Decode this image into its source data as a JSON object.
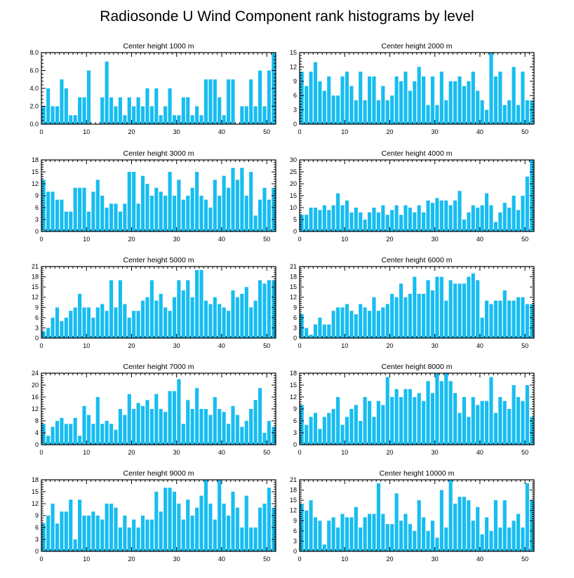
{
  "chart_data": {
    "title": "Radiosonde U Wind Component rank histograms by level",
    "type": "bar",
    "x_ticks": [
      0,
      10,
      20,
      30,
      40,
      50
    ],
    "xlim": [
      0,
      52
    ],
    "panels": [
      {
        "title": "Center height 1000 m",
        "ylim": [
          0,
          8
        ],
        "y_ticks": [
          0,
          2,
          4,
          6,
          8
        ],
        "y_tick_labels": [
          "0.0",
          "2.0",
          "4.0",
          "6.0",
          "8.0"
        ],
        "values": [
          2,
          4,
          2,
          2,
          5,
          4,
          1,
          1,
          3,
          3,
          6,
          0,
          0,
          3,
          7,
          3,
          2,
          3,
          1,
          3,
          2,
          3,
          2,
          4,
          2,
          4,
          1,
          2,
          4,
          1,
          1,
          3,
          3,
          1,
          2,
          1,
          5,
          5,
          5,
          3,
          1,
          5,
          5,
          0,
          2,
          2,
          5,
          2,
          6,
          2,
          6,
          8
        ]
      },
      {
        "title": "Center height 2000 m",
        "ylim": [
          0,
          15
        ],
        "y_ticks": [
          0,
          3,
          6,
          9,
          12,
          15
        ],
        "y_tick_labels": [
          "0",
          "3",
          "6",
          "9",
          "12",
          "15"
        ],
        "values": [
          11,
          8,
          11,
          13,
          9,
          7,
          10,
          6,
          6,
          10,
          11,
          8,
          5,
          11,
          5,
          10,
          10,
          5,
          8,
          5,
          6,
          10,
          9,
          11,
          7,
          9,
          12,
          10,
          4,
          10,
          4,
          11,
          5,
          9,
          9,
          10,
          8,
          9,
          11,
          7,
          5,
          3,
          15,
          10,
          11,
          4,
          5,
          12,
          4,
          11,
          5,
          5
        ]
      },
      {
        "title": "Center height 3000 m",
        "ylim": [
          0,
          18
        ],
        "y_ticks": [
          0,
          3,
          6,
          9,
          12,
          15,
          18
        ],
        "y_tick_labels": [
          "0",
          "3",
          "6",
          "9",
          "12",
          "15",
          "18"
        ],
        "values": [
          13,
          10,
          10,
          8,
          8,
          5,
          5,
          11,
          11,
          11,
          5,
          10,
          13,
          9,
          6,
          7,
          7,
          5,
          7,
          15,
          15,
          7,
          14,
          12,
          9,
          11,
          10,
          9,
          15,
          9,
          13,
          8,
          9,
          11,
          15,
          9,
          8,
          6,
          13,
          9,
          14,
          11,
          16,
          13,
          16,
          9,
          15,
          4,
          8,
          11,
          8,
          11
        ]
      },
      {
        "title": "Center height 4000 m",
        "ylim": [
          0,
          30
        ],
        "y_ticks": [
          0,
          5,
          10,
          15,
          20,
          25,
          30
        ],
        "y_tick_labels": [
          "0",
          "5",
          "10",
          "15",
          "20",
          "25",
          "30"
        ],
        "values": [
          7,
          7,
          10,
          10,
          9,
          11,
          9,
          11,
          16,
          11,
          13,
          8,
          10,
          8,
          5,
          8,
          10,
          8,
          11,
          7,
          9,
          11,
          7,
          11,
          10,
          8,
          11,
          8,
          13,
          12,
          14,
          13,
          13,
          11,
          13,
          17,
          5,
          8,
          11,
          10,
          11,
          16,
          11,
          4,
          8,
          12,
          10,
          15,
          9,
          15,
          23,
          30
        ]
      },
      {
        "title": "Center height 5000 m",
        "ylim": [
          0,
          21
        ],
        "y_ticks": [
          0,
          3,
          6,
          9,
          12,
          15,
          18,
          21
        ],
        "y_tick_labels": [
          "0",
          "3",
          "6",
          "9",
          "12",
          "15",
          "18",
          "21"
        ],
        "values": [
          2,
          3,
          6,
          9,
          5,
          6,
          8,
          9,
          13,
          9,
          9,
          6,
          9,
          10,
          8,
          17,
          9,
          17,
          10,
          6,
          8,
          8,
          11,
          12,
          17,
          11,
          13,
          9,
          8,
          12,
          17,
          14,
          17,
          12,
          20,
          20,
          11,
          10,
          12,
          10,
          9,
          8,
          14,
          12,
          13,
          15,
          9,
          11,
          17,
          16,
          17,
          17
        ]
      },
      {
        "title": "Center height 6000 m",
        "ylim": [
          0,
          21
        ],
        "y_ticks": [
          0,
          3,
          6,
          9,
          12,
          15,
          18,
          21
        ],
        "y_tick_labels": [
          "0",
          "3",
          "6",
          "9",
          "12",
          "15",
          "18",
          "21"
        ],
        "values": [
          7,
          3,
          1,
          4,
          6,
          4,
          4,
          8,
          9,
          9,
          10,
          8,
          7,
          10,
          9,
          8,
          12,
          8,
          9,
          10,
          13,
          12,
          16,
          12,
          13,
          18,
          13,
          13,
          17,
          14,
          18,
          18,
          11,
          17,
          16,
          16,
          16,
          18,
          19,
          17,
          6,
          11,
          10,
          11,
          11,
          14,
          11,
          11,
          12,
          12,
          10,
          10
        ]
      },
      {
        "title": "Center height 7000 m",
        "ylim": [
          0,
          24
        ],
        "y_ticks": [
          0,
          4,
          8,
          12,
          16,
          20,
          24
        ],
        "y_tick_labels": [
          "0",
          "4",
          "8",
          "12",
          "16",
          "20",
          "24"
        ],
        "values": [
          7,
          3,
          6,
          8,
          9,
          7,
          7,
          9,
          3,
          13,
          10,
          7,
          16,
          7,
          8,
          7,
          5,
          12,
          10,
          17,
          12,
          14,
          13,
          15,
          12,
          17,
          12,
          11,
          18,
          18,
          22,
          7,
          15,
          12,
          19,
          12,
          12,
          10,
          16,
          12,
          11,
          7,
          13,
          10,
          6,
          8,
          12,
          15,
          19,
          4,
          8,
          6
        ]
      },
      {
        "title": "Center height 8000 m",
        "ylim": [
          0,
          18
        ],
        "y_ticks": [
          0,
          3,
          6,
          9,
          12,
          15,
          18
        ],
        "y_tick_labels": [
          "0",
          "3",
          "6",
          "9",
          "12",
          "15",
          "18"
        ],
        "values": [
          10,
          5,
          7,
          8,
          4,
          7,
          8,
          9,
          12,
          5,
          7,
          9,
          10,
          6,
          12,
          11,
          7,
          11,
          10,
          17,
          12,
          14,
          12,
          14,
          14,
          12,
          13,
          11,
          16,
          13,
          18,
          16,
          18,
          16,
          13,
          8,
          12,
          7,
          12,
          10,
          11,
          11,
          17,
          8,
          12,
          11,
          9,
          15,
          12,
          11,
          15,
          7
        ]
      },
      {
        "title": "Center height 9000 m",
        "ylim": [
          0,
          18
        ],
        "y_ticks": [
          0,
          3,
          6,
          9,
          12,
          15,
          18
        ],
        "y_tick_labels": [
          "0",
          "3",
          "6",
          "9",
          "12",
          "15",
          "18"
        ],
        "values": [
          7,
          9,
          12,
          7,
          10,
          10,
          13,
          3,
          13,
          9,
          9,
          10,
          9,
          8,
          12,
          12,
          11,
          6,
          9,
          6,
          8,
          6,
          9,
          8,
          8,
          15,
          10,
          16,
          16,
          15,
          12,
          8,
          13,
          9,
          11,
          14,
          18,
          12,
          8,
          18,
          12,
          9,
          15,
          11,
          6,
          14,
          6,
          6,
          11,
          12,
          16,
          11
        ]
      },
      {
        "title": "Center height 10000 m",
        "ylim": [
          0,
          21
        ],
        "y_ticks": [
          0,
          3,
          6,
          9,
          12,
          15,
          18,
          21
        ],
        "y_tick_labels": [
          "0",
          "3",
          "6",
          "9",
          "12",
          "15",
          "18",
          "21"
        ],
        "values": [
          14,
          12,
          15,
          10,
          9,
          2,
          9,
          10,
          7,
          11,
          10,
          10,
          13,
          7,
          10,
          11,
          11,
          20,
          11,
          8,
          8,
          17,
          9,
          11,
          8,
          6,
          15,
          10,
          6,
          9,
          4,
          18,
          7,
          21,
          14,
          16,
          16,
          15,
          9,
          13,
          5,
          10,
          6,
          15,
          7,
          15,
          7,
          9,
          11,
          7,
          20,
          15
        ]
      }
    ]
  },
  "colors": {
    "bar": "#17bdf0",
    "axis": "#000000",
    "background": "#ffffff"
  }
}
